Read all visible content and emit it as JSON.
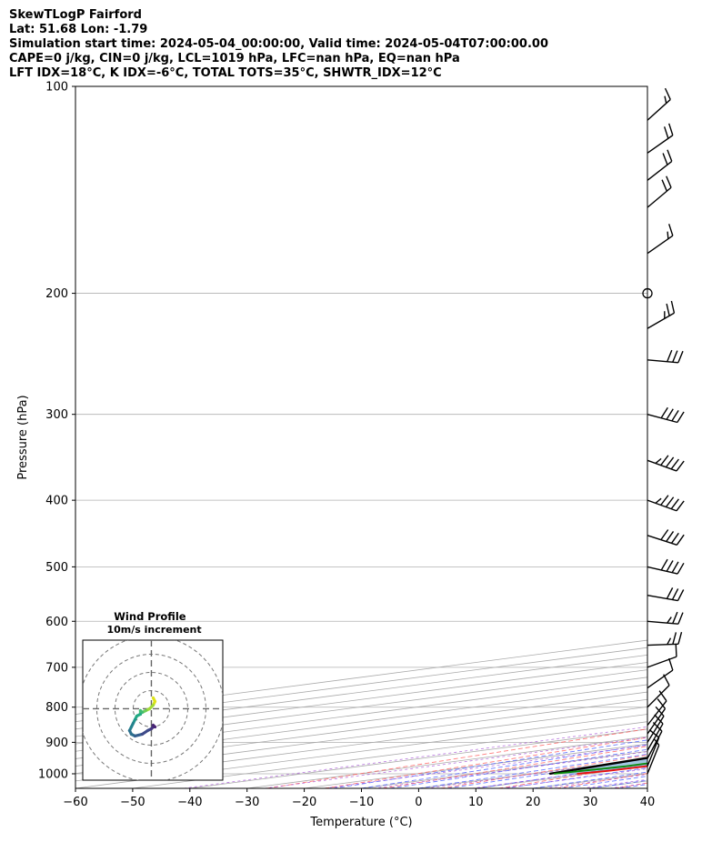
{
  "header": {
    "line1": "SkewTLogP Fairford",
    "line2": "Lat: 51.68   Lon: -1.79",
    "line3": "Simulation start time: 2024-05-04_00:00:00, Valid time: 2024-05-04T07:00:00.00",
    "line4": "CAPE=0 j/kg, CIN=0 j/kg, LCL=1019 hPa, LFC=nan hPa, EQ=nan hPa",
    "line5": "LFT IDX=18°C, K IDX=-6°C, TOTAL TOTS=35°C, SHWTR_IDX=12°C"
  },
  "colors": {
    "temperature": "#e8100f",
    "dewpoint": "#0a8a0a",
    "parcel": "#000000",
    "cape_fill": "#7eb0d5",
    "dry_adiabat": "#ff5a5a",
    "moist_adiabat": "#3a4dff",
    "mixing_ratio": "#9a3ad0",
    "isotherm": "#aaaaaa"
  },
  "chart_data": {
    "type": "line",
    "title": "SkewTLogP Fairford",
    "xlabel": "Temperature (°C)",
    "ylabel": "Pressure (hPa)",
    "xlim": [
      -60,
      40
    ],
    "ylim": [
      1050,
      100
    ],
    "x_ticks": [
      -60,
      -50,
      -40,
      -30,
      -20,
      -10,
      0,
      10,
      20,
      30,
      40
    ],
    "x_tick_labels": [
      "−60",
      "−50",
      "−40",
      "−30",
      "−20",
      "−10",
      "0",
      "10",
      "20",
      "30",
      "40"
    ],
    "y_ticks": [
      1000,
      900,
      800,
      700,
      600,
      500,
      400,
      300,
      200,
      100
    ],
    "y_tick_labels": [
      "1000",
      "900",
      "800",
      "700",
      "600",
      "500",
      "400",
      "300",
      "200",
      "100"
    ],
    "skew_degrees": 45,
    "series": [
      {
        "name": "Temperature",
        "p": [
          1000,
          990,
          975,
          950,
          925,
          900,
          850,
          800,
          750,
          700,
          650,
          600,
          550,
          500,
          450,
          400,
          350,
          330,
          300,
          280,
          270,
          250,
          230,
          200,
          180,
          150,
          130,
          120,
          110,
          100
        ],
        "t": [
          8.0,
          9.5,
          10.0,
          9.8,
          9.0,
          8.1,
          6.3,
          4.1,
          1.7,
          -1.0,
          -4.0,
          -7.0,
          -11.9,
          -17.2,
          -23.3,
          -30.9,
          -39.1,
          -42.5,
          -47.7,
          -51.0,
          -52.7,
          -53.9,
          -55.0,
          -56.8,
          -58.5,
          -62.5,
          -66.0,
          -68.0,
          -70.5,
          -73.0
        ]
      },
      {
        "name": "Dewpoint",
        "p": [
          1000,
          975,
          950,
          925,
          900,
          850,
          800,
          750,
          700,
          650,
          600,
          550,
          500,
          450,
          400,
          350,
          330,
          300,
          270,
          250,
          220,
          200,
          180,
          150,
          120,
          100
        ],
        "td": [
          4.0,
          6.4,
          5.9,
          4.3,
          1.1,
          -6.9,
          -14.0,
          -23.0,
          -31.0,
          -33.0,
          -38.3,
          -44.9,
          -54.3,
          -61.2,
          -67.6,
          -75.4,
          -79.1,
          -84.0,
          -88.7,
          -91.2,
          -95.4,
          -99.4,
          -102.7,
          -106.5,
          -111.4,
          -115.4
        ]
      },
      {
        "name": "Parcel",
        "p": [
          1000,
          950,
          900,
          850,
          800,
          750,
          700,
          650,
          600,
          550,
          500,
          450,
          400,
          350,
          300,
          250,
          200,
          150,
          100
        ],
        "tp": [
          3.2,
          -0.9,
          -5.2,
          -9.6,
          -14.3,
          -19.2,
          -24.6,
          -30.5,
          -36.7,
          -43.6,
          -51.2,
          -59.8,
          -68.7,
          -79.3,
          -91.0,
          -105.0,
          -121.0,
          -141.0,
          -168.0
        ]
      }
    ],
    "wind_barbs_pressures": [
      1000,
      975,
      950,
      925,
      900,
      875,
      850,
      800,
      750,
      700,
      650,
      600,
      550,
      500,
      450,
      400,
      350,
      300,
      250,
      225,
      200,
      175,
      150,
      137,
      125,
      112
    ],
    "hodograph": {
      "title": "Wind Profile",
      "subtitle": "10m/s increment",
      "rings_ms": [
        10,
        20,
        30,
        40
      ],
      "u": [
        1,
        2,
        1,
        -1,
        -3,
        -5,
        -6,
        -6,
        -8,
        -9,
        -10,
        -11,
        -12,
        -11,
        -9,
        -5,
        -2,
        0,
        1,
        2,
        1
      ],
      "v": [
        6,
        4,
        2,
        0,
        -1,
        -2,
        -1,
        -3,
        -4,
        -6,
        -8,
        -10,
        -12,
        -14,
        -15,
        -14,
        -12,
        -11,
        -10,
        -10,
        -9
      ]
    }
  }
}
